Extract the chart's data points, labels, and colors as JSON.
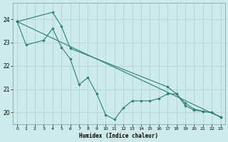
{
  "line1_x": [
    0,
    1,
    3,
    4,
    5,
    6,
    7,
    8,
    9,
    10,
    11,
    12,
    13,
    14,
    15,
    16,
    17,
    18,
    19,
    20,
    21,
    22,
    23
  ],
  "line1_y": [
    23.9,
    22.9,
    23.1,
    23.6,
    22.8,
    22.3,
    21.2,
    21.5,
    20.8,
    19.9,
    19.7,
    20.2,
    20.5,
    20.5,
    20.5,
    20.6,
    20.8,
    20.8,
    20.3,
    20.1,
    20.05,
    20.0,
    19.8
  ],
  "line2_x": [
    0,
    4,
    5,
    6,
    17,
    18,
    19,
    20,
    21,
    22,
    23
  ],
  "line2_y": [
    23.9,
    24.3,
    23.7,
    22.75,
    21.1,
    20.8,
    20.4,
    20.15,
    20.05,
    20.0,
    19.8
  ],
  "line3_x": [
    0,
    23
  ],
  "line3_y": [
    23.9,
    19.8
  ],
  "color": "#2e7d6e",
  "bg_color": "#cdeaea",
  "grid_color": "#aecece",
  "xlabel": "Humidex (Indice chaleur)",
  "ylim": [
    19.5,
    24.7
  ],
  "xlim": [
    -0.5,
    23.5
  ],
  "yticks": [
    20,
    21,
    22,
    23,
    24
  ],
  "xticks": [
    0,
    1,
    2,
    3,
    4,
    5,
    6,
    7,
    8,
    9,
    10,
    11,
    12,
    13,
    14,
    15,
    16,
    17,
    18,
    19,
    20,
    21,
    22,
    23
  ]
}
